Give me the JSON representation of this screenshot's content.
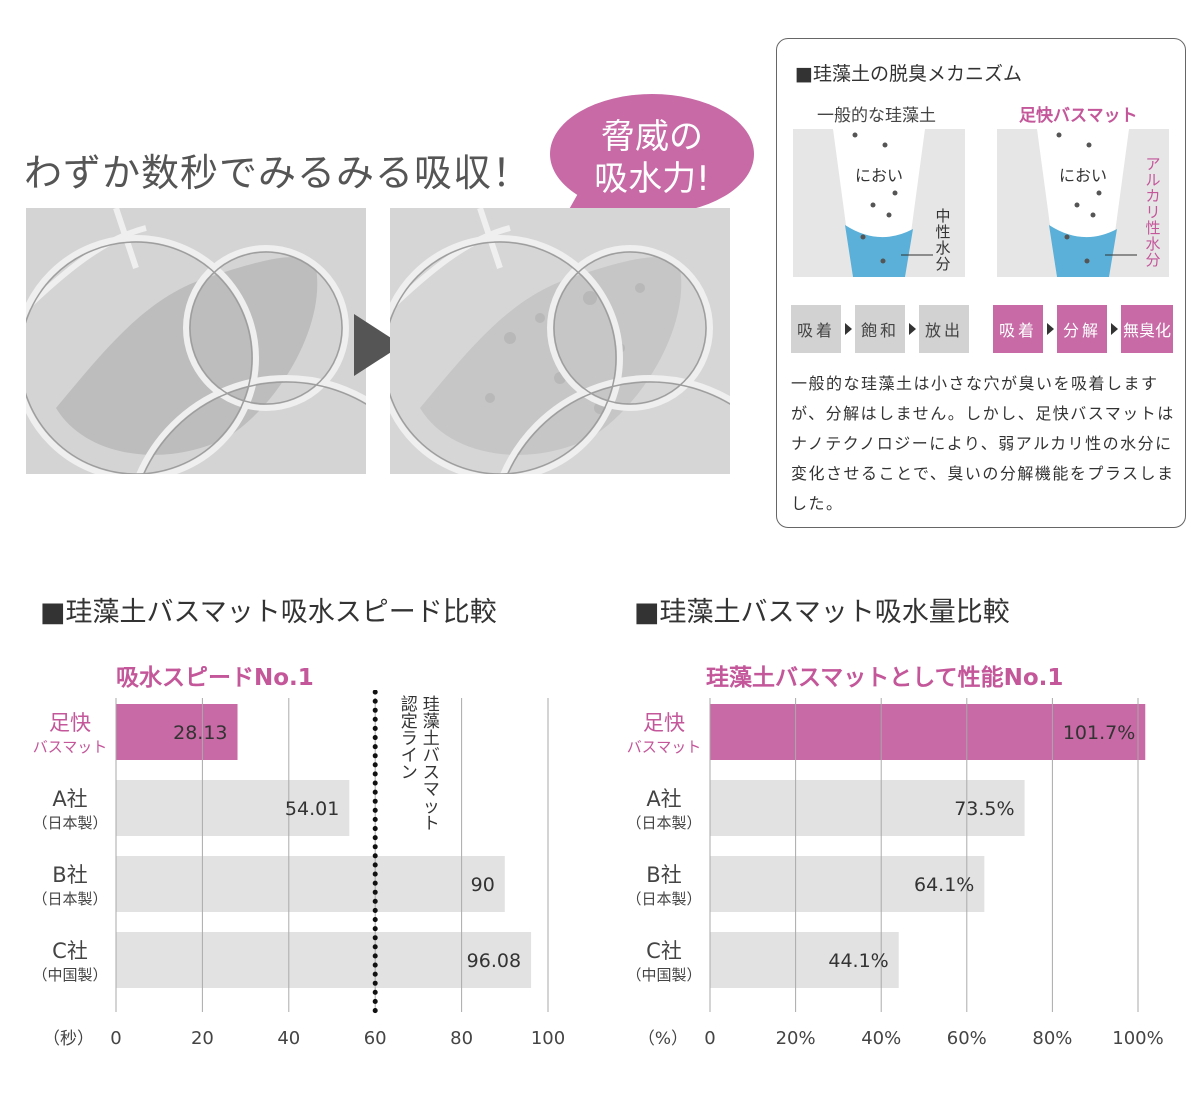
{
  "headline": "わずか数秒でみるみる吸収！",
  "bubble": {
    "line1": "脅威の",
    "line2": "吸水力!"
  },
  "mechanism": {
    "title": "■珪藻土の脱臭メカニズム",
    "left": {
      "title": "一般的な珪藻土",
      "odor_label": "におい",
      "water_label": "中性水分",
      "steps": [
        "吸着",
        "飽和",
        "放出"
      ]
    },
    "right": {
      "title": "足快バスマット",
      "odor_label": "におい",
      "water_label": "アルカリ性水分",
      "steps": [
        "吸着",
        "分解",
        "無臭化"
      ]
    },
    "description": "一般的な珪藻土は小さな穴が臭いを吸着しますが、分解はしません。しかし、足快バスマットはナノテクノロジーにより、弱アルカリ性の水分に変化させることで、臭いの分解機能をプラスしました。"
  },
  "colors": {
    "accent": "#c76aa6",
    "accent_text": "#c4569a",
    "bar_grey": "#e2e2e2",
    "water": "#5ab0d8"
  },
  "chart_data": [
    {
      "type": "bar",
      "orientation": "horizontal",
      "title": "■珪藻土バスマット吸水スピード比較",
      "subtitle": "吸水スピードNo.1",
      "categories": [
        {
          "name": "足快",
          "sub": "バスマット"
        },
        {
          "name": "A社",
          "sub": "（日本製）"
        },
        {
          "name": "B社",
          "sub": "（日本製）"
        },
        {
          "name": "C社",
          "sub": "（中国製）"
        }
      ],
      "values": [
        28.13,
        54.01,
        90,
        96.08
      ],
      "value_labels": [
        "28.13",
        "54.01",
        "90",
        "96.08"
      ],
      "xlim": [
        0,
        100
      ],
      "xticks": [
        0,
        20,
        40,
        60,
        80,
        100
      ],
      "xtick_labels": [
        "0",
        "20",
        "40",
        "60",
        "80",
        "100"
      ],
      "unit_label": "（秒）",
      "grid": true,
      "reference_line": {
        "value": 60,
        "label_lines": [
          "珪藻土バスマット",
          "認定ライン"
        ]
      }
    },
    {
      "type": "bar",
      "orientation": "horizontal",
      "title": "■珪藻土バスマット吸水量比較",
      "subtitle": "珪藻土バスマットとして性能No.1",
      "categories": [
        {
          "name": "足快",
          "sub": "バスマット"
        },
        {
          "name": "A社",
          "sub": "（日本製）"
        },
        {
          "name": "B社",
          "sub": "（日本製）"
        },
        {
          "name": "C社",
          "sub": "（中国製）"
        }
      ],
      "values": [
        101.7,
        73.5,
        64.1,
        44.1
      ],
      "value_labels": [
        "101.7%",
        "73.5%",
        "64.1%",
        "44.1%"
      ],
      "xlim": [
        0,
        100
      ],
      "xticks": [
        0,
        20,
        40,
        60,
        80,
        100
      ],
      "xtick_labels": [
        "0",
        "20%",
        "40%",
        "60%",
        "80%",
        "100%"
      ],
      "unit_label": "（%）",
      "grid": true
    }
  ]
}
